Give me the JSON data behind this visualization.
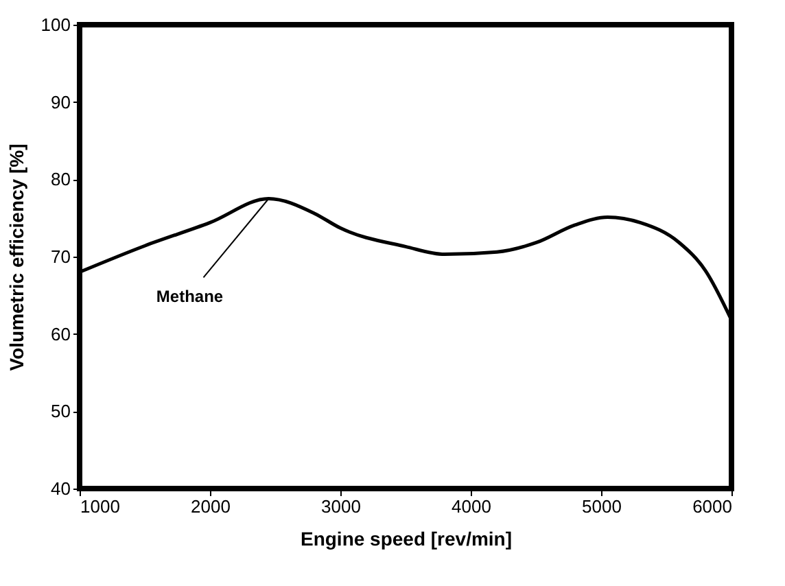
{
  "chart_data": {
    "type": "line",
    "xlabel": "Engine speed [rev/min]",
    "ylabel": "Volumetric efficiency [%]",
    "x": [
      1000,
      1500,
      2000,
      2450,
      2800,
      3000,
      3500,
      3800,
      4200,
      4500,
      4800,
      5050,
      5300,
      5600,
      5800,
      6000
    ],
    "series": [
      {
        "color": "#000000",
        "values": [
          68.0,
          71.4,
          74.4,
          77.5,
          75.6,
          73.7,
          71.3,
          70.3,
          70.6,
          71.8,
          74.1,
          75.1,
          74.4,
          71.8,
          68.2,
          61.8
        ]
      }
    ],
    "annotations": [
      {
        "text": "Methane",
        "x": 2450,
        "y": 77.5
      }
    ],
    "xlim": [
      1000,
      6000
    ],
    "xticks": [
      1000,
      2000,
      3000,
      4000,
      5000,
      6000
    ],
    "ylim": [
      40,
      100
    ],
    "yticks": [
      40,
      50,
      60,
      70,
      80,
      90,
      100
    ],
    "grid": false,
    "marker": "none",
    "line_style": "solid"
  }
}
